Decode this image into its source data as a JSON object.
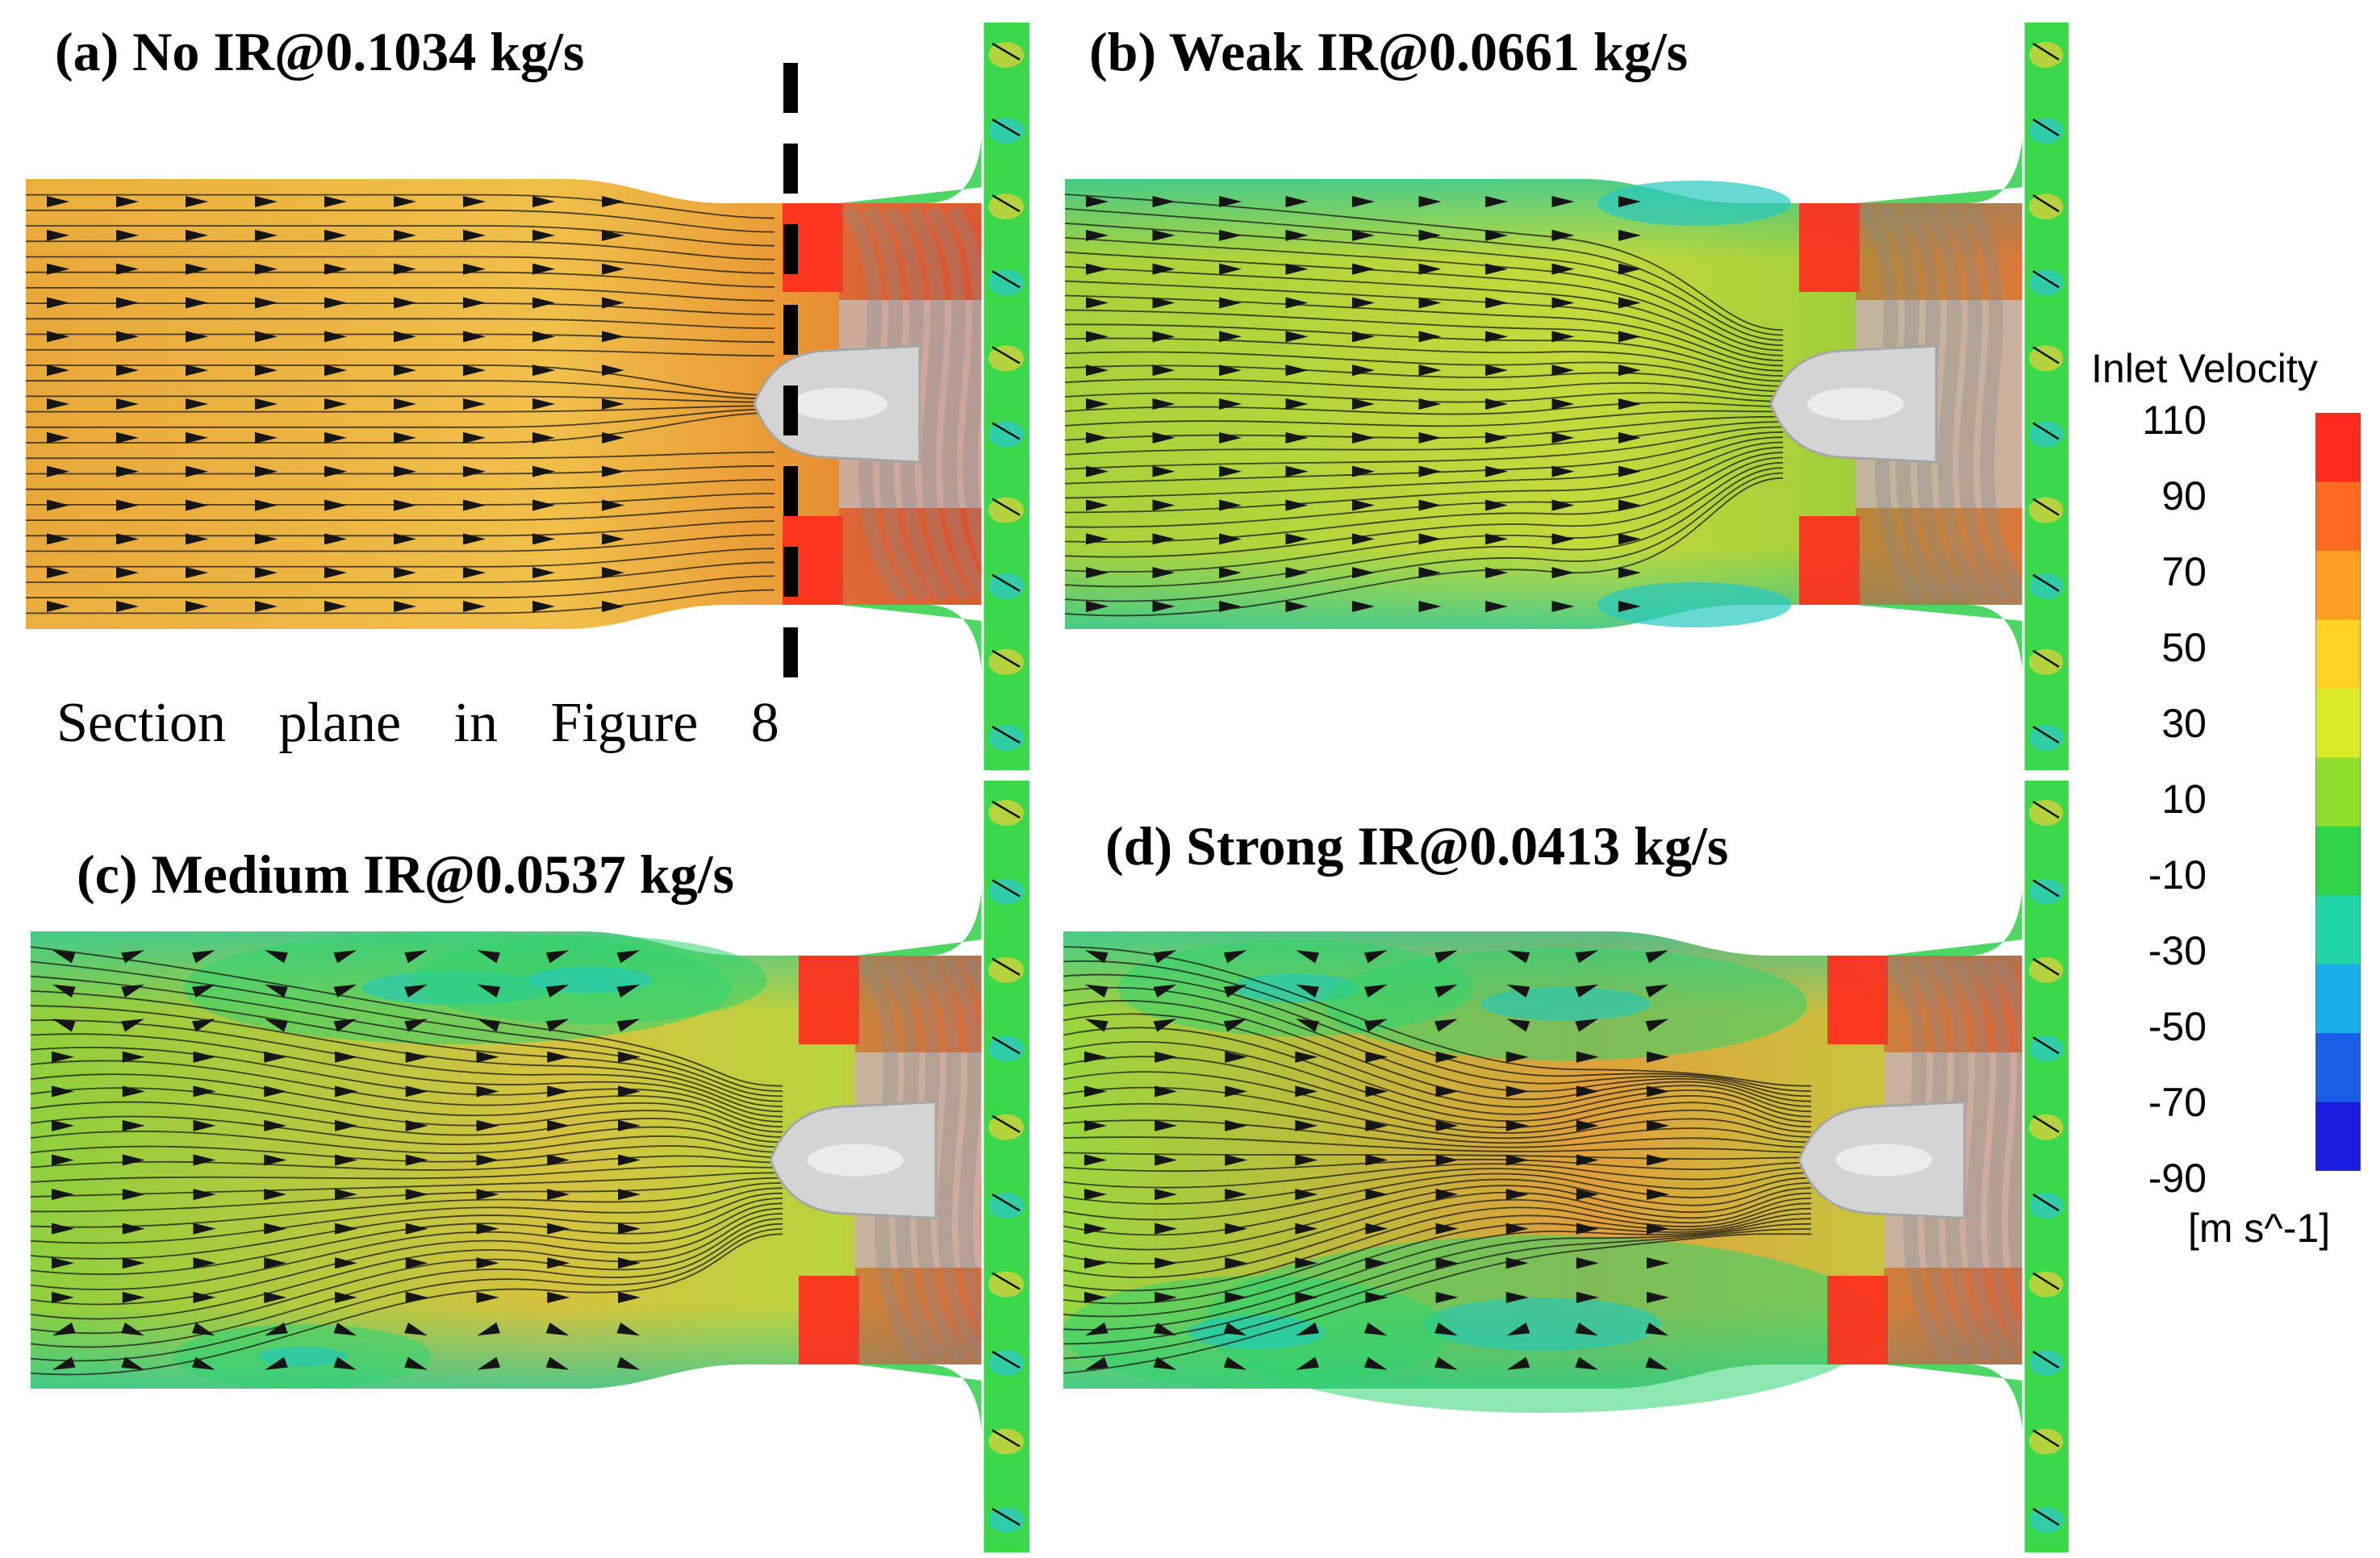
{
  "panels": [
    {
      "key": "a",
      "title": "(a) No IR@0.1034 kg/s",
      "level": 0,
      "bg_colors": [
        "#e9a83a",
        "#f0c04a",
        "#e88e30",
        "#e45a20"
      ]
    },
    {
      "key": "b",
      "title": "(b) Weak IR@0.0661 kg/s",
      "level": 1,
      "bg_colors": [
        "#a7d23c",
        "#c4da3c",
        "#9ccd3a",
        "#e4b03a"
      ]
    },
    {
      "key": "c",
      "title": "(c) Medium IR@0.0537 kg/s",
      "level": 2,
      "bg_colors": [
        "#8fd03e",
        "#d6c240",
        "#b9d43e",
        "#e88c32"
      ]
    },
    {
      "key": "d",
      "title": "(d) Strong IR@0.0413 kg/s",
      "level": 3,
      "bg_colors": [
        "#9ad63e",
        "#e0a03c",
        "#c8c43e",
        "#ea8232"
      ]
    }
  ],
  "section_label": "Section plane in Figure 8",
  "legend": {
    "title": "Inlet Velocity",
    "unit": "[m s^-1]",
    "ticks": [
      "110",
      "90",
      "70",
      "50",
      "30",
      "10",
      "-10",
      "-30",
      "-50",
      "-70",
      "-90"
    ],
    "colors": [
      "#ff2a1c",
      "#ff6a1e",
      "#ff9e22",
      "#ffd224",
      "#d8ec28",
      "#8fe02c",
      "#30d448",
      "#20d6a6",
      "#1aaee8",
      "#1a5ee8",
      "#1a1ce0"
    ]
  }
}
